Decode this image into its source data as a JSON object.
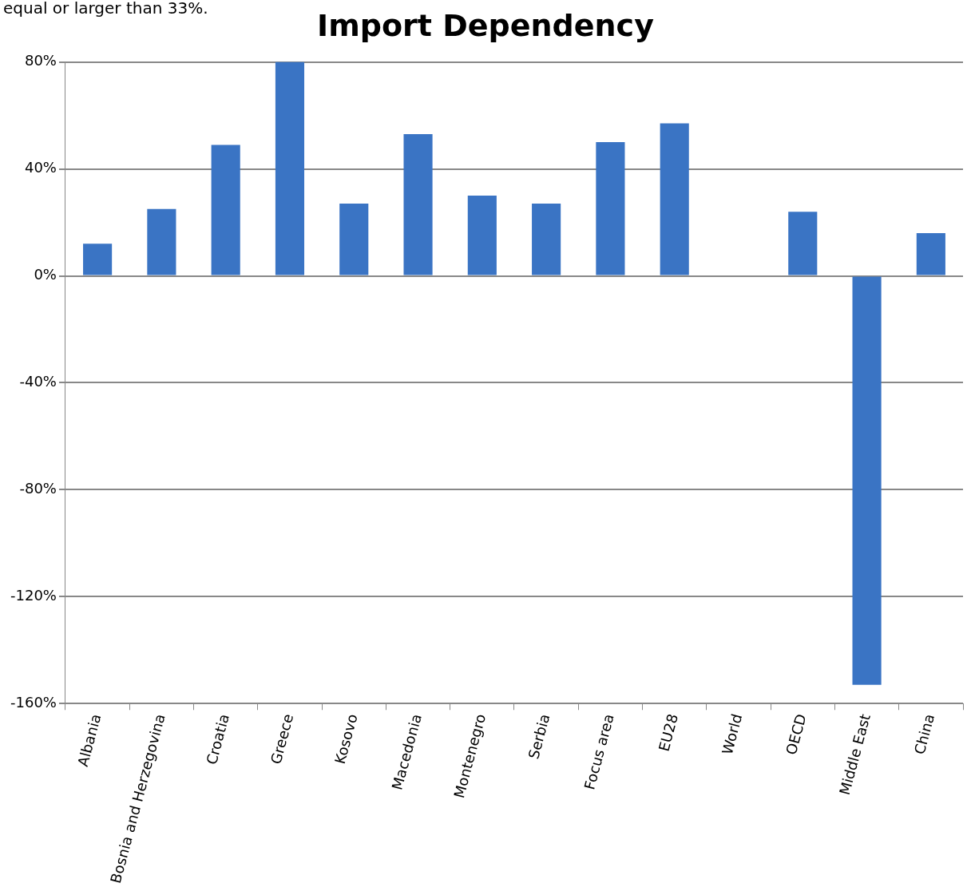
{
  "chart_data": {
    "type": "bar",
    "title": "Import Dependency",
    "annotations": [
      "equal or larger than 33%."
    ],
    "categories": [
      "Albania",
      "Bosnia and Herzegovina",
      "Croatia",
      "Greece",
      "Kosovo",
      "Macedonia",
      "Montenegro",
      "Serbia",
      "Focus area",
      "EU28",
      "World",
      "OECD",
      "Middle East",
      "China"
    ],
    "values": [
      12,
      25,
      49,
      80,
      27,
      53,
      30,
      27,
      50,
      57,
      null,
      24,
      -153,
      16
    ],
    "color": "#3a74c4",
    "ylim": [
      -160,
      80
    ],
    "yticks": [
      {
        "value": -160,
        "label": "-160%"
      },
      {
        "value": -120,
        "label": "-120%"
      },
      {
        "value": -80,
        "label": "-80%"
      },
      {
        "value": -40,
        "label": "-40%"
      },
      {
        "value": 0,
        "label": "0%"
      },
      {
        "value": 40,
        "label": "40%"
      },
      {
        "value": 80,
        "label": "80%"
      }
    ],
    "grid": "y",
    "legend": false
  }
}
